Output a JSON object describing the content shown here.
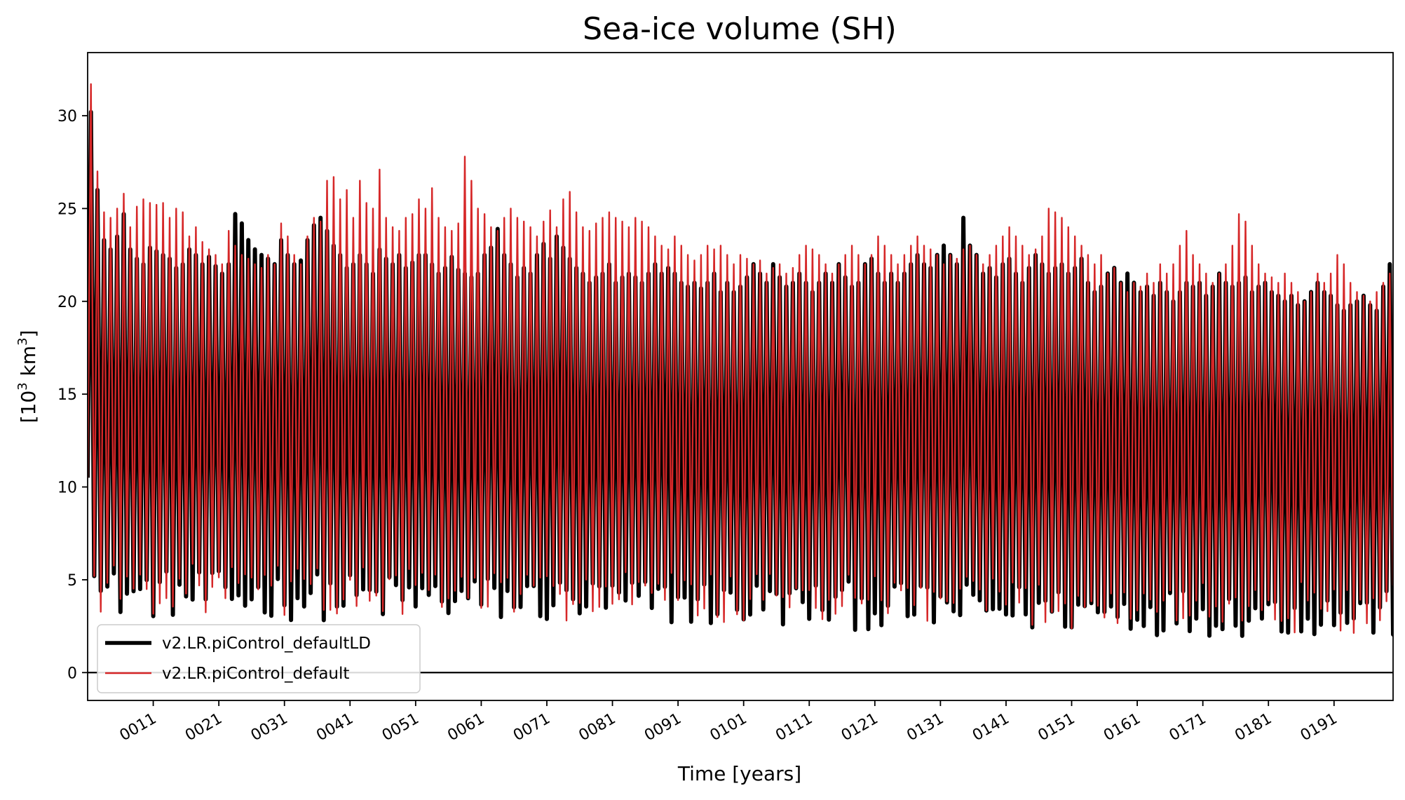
{
  "chart_data": {
    "type": "line",
    "title": "Sea-ice volume (SH)",
    "xlabel": "Time [years]",
    "ylabel_main": "[10",
    "ylabel_sup1": "3",
    "ylabel_mid": " km",
    "ylabel_sup2": "3",
    "ylabel_end": "]",
    "xlim": [
      1,
      200
    ],
    "ylim": [
      -1.5,
      33.4
    ],
    "x_ticks": [
      11,
      21,
      31,
      41,
      51,
      61,
      71,
      81,
      91,
      101,
      111,
      121,
      131,
      141,
      151,
      161,
      171,
      181,
      191
    ],
    "x_tick_labels": [
      "0011",
      "0021",
      "0031",
      "0041",
      "0051",
      "0061",
      "0071",
      "0081",
      "0091",
      "0101",
      "0111",
      "0121",
      "0131",
      "0141",
      "0151",
      "0161",
      "0171",
      "0181",
      "0191"
    ],
    "y_ticks": [
      0,
      5,
      10,
      15,
      20,
      25,
      30
    ],
    "y_tick_labels": [
      "0",
      "5",
      "10",
      "15",
      "20",
      "25",
      "30"
    ],
    "reference_line_y": 0,
    "legend_position": "lower-left",
    "series": [
      {
        "name": "v2.LR.piControl_defaultLD",
        "color": "#000000",
        "annual_max": [
          30.2,
          26.0,
          23.3,
          22.8,
          23.5,
          24.7,
          22.8,
          22.3,
          22.0,
          22.9,
          22.7,
          22.5,
          22.3,
          21.8,
          22.0,
          22.8,
          22.5,
          22.0,
          22.4,
          21.9,
          21.5,
          22.0,
          24.7,
          24.2,
          23.3,
          22.8,
          22.5,
          22.3,
          22.0,
          23.3,
          22.5,
          22.0,
          22.2,
          23.3,
          24.1,
          24.5,
          23.8,
          23.0,
          22.5,
          21.8,
          22.0,
          22.5,
          22.0,
          21.5,
          22.8,
          22.3,
          22.0,
          22.5,
          21.8,
          22.1,
          22.5,
          22.5,
          22.0,
          21.5,
          21.8,
          22.4,
          21.7,
          21.5,
          21.3,
          21.5,
          22.5,
          22.9,
          23.9,
          22.5,
          22.0,
          21.3,
          21.8,
          21.5,
          22.5,
          23.1,
          22.3,
          23.5,
          22.9,
          22.3,
          21.8,
          21.5,
          21.0,
          21.3,
          21.5,
          22.0,
          21.0,
          21.3,
          21.5,
          21.3,
          21.0,
          21.5,
          22.0,
          21.5,
          21.8,
          21.5,
          21.0,
          20.8,
          21.0,
          20.7,
          21.0,
          21.5,
          20.5,
          21.0,
          20.5,
          20.8,
          21.3,
          22.0,
          21.5,
          21.0,
          22.0,
          21.3,
          20.8,
          21.0,
          21.5,
          21.0,
          20.5,
          21.0,
          21.5,
          21.0,
          22.0,
          21.3,
          20.8,
          21.0,
          22.0,
          22.3,
          21.5,
          21.0,
          21.5,
          21.0,
          21.5,
          22.0,
          22.5,
          22.0,
          21.8,
          22.5,
          23.0,
          22.5,
          22.0,
          24.5,
          23.0,
          22.5,
          21.5,
          21.8,
          21.3,
          22.0,
          22.3,
          21.5,
          21.0,
          21.8,
          22.5,
          22.0,
          21.5,
          21.8,
          22.0,
          21.5,
          21.8,
          22.3,
          21.0,
          20.5,
          20.8,
          21.5,
          21.8,
          21.0,
          21.5,
          21.0,
          20.5,
          20.8,
          20.3,
          21.0,
          20.5,
          20.0,
          20.5,
          21.0,
          20.8,
          21.0,
          20.3,
          20.8,
          21.5,
          21.0,
          20.8,
          21.0,
          21.3,
          20.5,
          20.8,
          21.0,
          20.5,
          20.3,
          20.0,
          20.3,
          19.8,
          20.0,
          20.5,
          21.0,
          20.5,
          20.3,
          19.8,
          19.5,
          19.8,
          20.0,
          20.3,
          19.8,
          19.5,
          20.8,
          22.0,
          22.4
        ]
      },
      {
        "name": "v2.LR.piControl_default",
        "color": "#d62728",
        "annual_max": [
          31.7,
          27.0,
          24.8,
          24.5,
          25.0,
          25.8,
          24.0,
          25.1,
          25.5,
          25.3,
          25.2,
          25.3,
          24.5,
          25.0,
          24.8,
          23.5,
          24.0,
          23.2,
          22.8,
          22.5,
          22.0,
          23.8,
          23.0,
          22.5,
          22.3,
          22.0,
          21.8,
          22.5,
          22.0,
          24.2,
          23.5,
          22.5,
          22.0,
          23.5,
          24.5,
          24.3,
          26.5,
          26.7,
          25.5,
          26.0,
          24.5,
          26.5,
          25.3,
          25.0,
          27.1,
          24.5,
          24.0,
          23.8,
          24.5,
          24.7,
          25.5,
          25.0,
          26.1,
          24.5,
          24.0,
          23.8,
          24.2,
          27.8,
          26.5,
          25.0,
          24.7,
          24.0,
          23.8,
          24.5,
          25.0,
          24.5,
          24.3,
          24.0,
          23.5,
          24.3,
          24.9,
          24.0,
          25.5,
          25.9,
          24.8,
          24.0,
          23.8,
          24.2,
          24.5,
          24.8,
          24.5,
          24.3,
          24.0,
          24.5,
          24.3,
          24.0,
          23.5,
          23.0,
          22.8,
          23.5,
          23.0,
          22.5,
          22.2,
          22.5,
          23.0,
          22.8,
          23.0,
          22.5,
          22.0,
          22.5,
          22.3,
          22.0,
          22.2,
          21.5,
          21.8,
          22.0,
          21.5,
          21.8,
          22.5,
          23.0,
          22.8,
          22.5,
          22.0,
          21.5,
          22.0,
          22.5,
          23.0,
          22.5,
          22.0,
          22.5,
          23.5,
          23.0,
          22.5,
          22.0,
          22.5,
          23.0,
          23.5,
          23.0,
          22.8,
          22.5,
          22.0,
          22.5,
          22.3,
          22.8,
          23.0,
          22.5,
          22.0,
          22.5,
          23.0,
          23.5,
          24.0,
          23.5,
          23.0,
          22.5,
          22.8,
          23.5,
          25.0,
          24.8,
          24.5,
          24.0,
          23.5,
          23.0,
          22.5,
          22.0,
          22.5,
          21.5,
          21.8,
          21.0,
          20.5,
          21.0,
          20.8,
          21.5,
          21.0,
          22.0,
          21.5,
          22.0,
          23.0,
          23.8,
          22.5,
          22.0,
          21.5,
          21.0,
          21.5,
          22.0,
          23.0,
          24.7,
          24.3,
          23.0,
          22.0,
          21.5,
          21.3,
          21.0,
          21.5,
          21.0,
          20.5,
          20.0,
          20.5,
          21.5,
          21.0,
          21.5,
          22.5,
          22.0,
          21.0,
          20.5,
          20.3,
          20.0,
          20.5,
          21.0,
          21.5,
          21.8
        ]
      }
    ]
  }
}
